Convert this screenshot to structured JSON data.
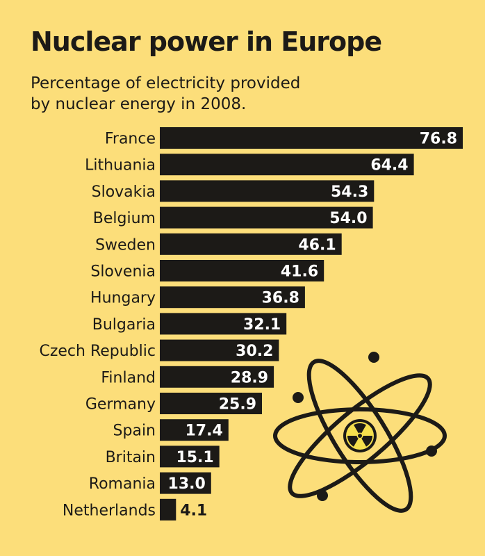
{
  "title": "Nuclear power in Europe",
  "subtitle_line1": "Percentage of electricity provided",
  "subtitle_line2": "by nuclear energy in 2008.",
  "colors": {
    "background": "#fcde7a",
    "bar": "#1c1a17",
    "bar_label": "#ffffff",
    "text": "#1c1a17"
  },
  "chart_data": {
    "type": "bar",
    "orientation": "horizontal",
    "title": "Nuclear power in Europe",
    "subtitle": "Percentage of electricity provided by nuclear energy in 2008.",
    "xlabel": "",
    "ylabel": "",
    "unit": "%",
    "xlim": [
      0,
      76.8
    ],
    "categories": [
      "France",
      "Lithuania",
      "Slovakia",
      "Belgium",
      "Sweden",
      "Slovenia",
      "Hungary",
      "Bulgaria",
      "Czech Republic",
      "Finland",
      "Germany",
      "Spain",
      "Britain",
      "Romania",
      "Netherlands"
    ],
    "values": [
      76.8,
      64.4,
      54.3,
      54.0,
      46.1,
      41.6,
      36.8,
      32.1,
      30.2,
      28.9,
      25.9,
      17.4,
      15.1,
      13.0,
      4.1
    ],
    "labels": [
      "76.8",
      "64.4",
      "54.3",
      "54.0",
      "46.1",
      "41.6",
      "36.8",
      "32.1",
      "30.2",
      "28.9",
      "25.9",
      "17.4",
      "15.1",
      "13.0",
      "4.1"
    ],
    "grid": false,
    "legend": "none"
  },
  "decoration": {
    "illustration": "atom-icon",
    "center_symbol": "radiation-icon"
  }
}
